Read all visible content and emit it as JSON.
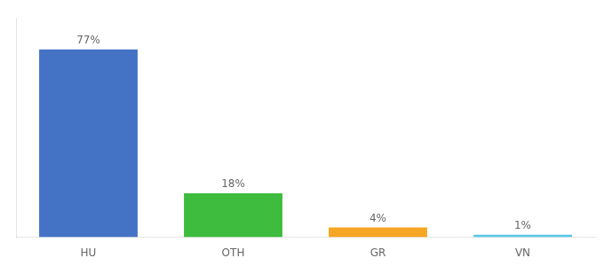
{
  "chart_data": {
    "type": "bar",
    "categories": [
      "HU",
      "OTH",
      "GR",
      "VN"
    ],
    "values": [
      77,
      18,
      4,
      1
    ],
    "value_labels": [
      "77%",
      "18%",
      "4%",
      "1%"
    ],
    "colors": [
      "#4472c4",
      "#3dbc3d",
      "#f5a623",
      "#56c8e8"
    ],
    "ylim": [
      0,
      90
    ],
    "data_labels": true,
    "tick_labels": "x",
    "grid": false
  }
}
